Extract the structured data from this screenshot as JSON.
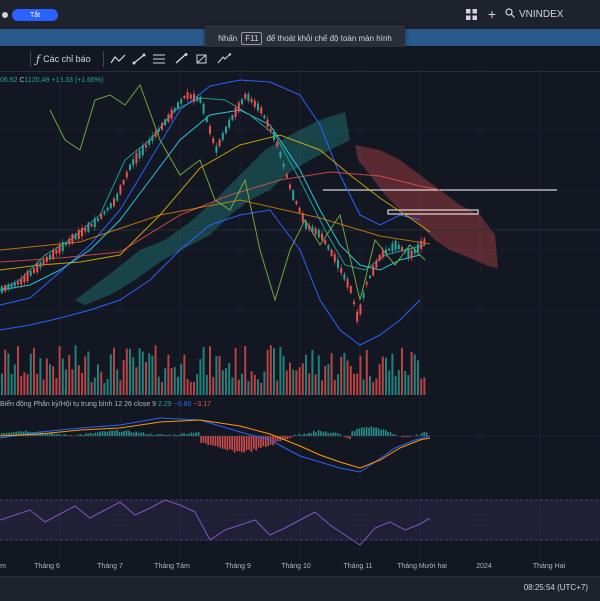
{
  "header": {
    "toggle_label": "Tắt",
    "search_value": "VNINDEX"
  },
  "banner": {
    "text_before": "Nhấn",
    "key": "F11",
    "text_after": "để thoát khỏi chế độ toàn màn hình"
  },
  "toolbar": {
    "indicators_label": "Các chỉ báo"
  },
  "legend": {
    "partial_value": "06.62",
    "close_prefix": "C",
    "close_value": "1120.49",
    "change_value": "+18.33 (+1.66%)"
  },
  "macd": {
    "label": "Biến động Phân kỳ/Hội tụ trung bình",
    "params": "12 26 close 9",
    "hist": "2.29",
    "macd_val": "−0.88",
    "signal": "−3.17"
  },
  "xaxis": {
    "labels": [
      "m",
      "Tháng 6",
      "Tháng 7",
      "Tháng Tám",
      "Tháng 9",
      "Tháng 10",
      "Tháng 11",
      "Tháng Mười hai",
      "2024",
      "Tháng Hai"
    ]
  },
  "status": {
    "clock": "08:25:54 (UTC+7)"
  },
  "colors": {
    "up": "#26a69a",
    "down": "#ef5350",
    "background": "#131722"
  }
}
